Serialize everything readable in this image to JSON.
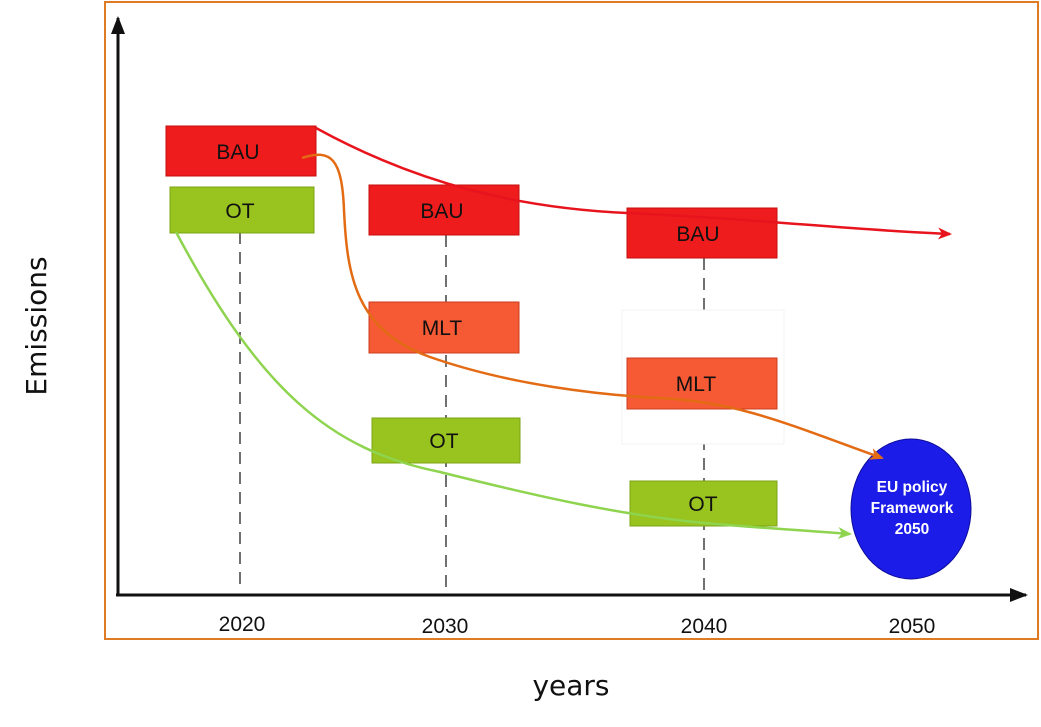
{
  "diagram": {
    "x_axis_title": "years",
    "y_axis_title": "Emissions",
    "years": [
      "2020",
      "2030",
      "2040",
      "2050"
    ],
    "boxes": {
      "bau_2020": "BAU",
      "ot_2020": "OT",
      "bau_2030": "BAU",
      "mlt_2030": "MLT",
      "ot_2030": "OT",
      "bau_2040": "BAU",
      "mlt_2040": "MLT",
      "ot_2040": "OT"
    },
    "target": {
      "line1": "EU policy",
      "line2": "Framework",
      "line3": "2050"
    },
    "colors": {
      "frame": "#e07b25",
      "bau": "#ee1c1c",
      "mlt": "#f55a35",
      "ot": "#99c31f",
      "bau_arrow": "#e8141d",
      "mlt_arrow": "#e36b14",
      "ot_arrow": "#8ed44e",
      "target": "#1c1ce8"
    }
  }
}
